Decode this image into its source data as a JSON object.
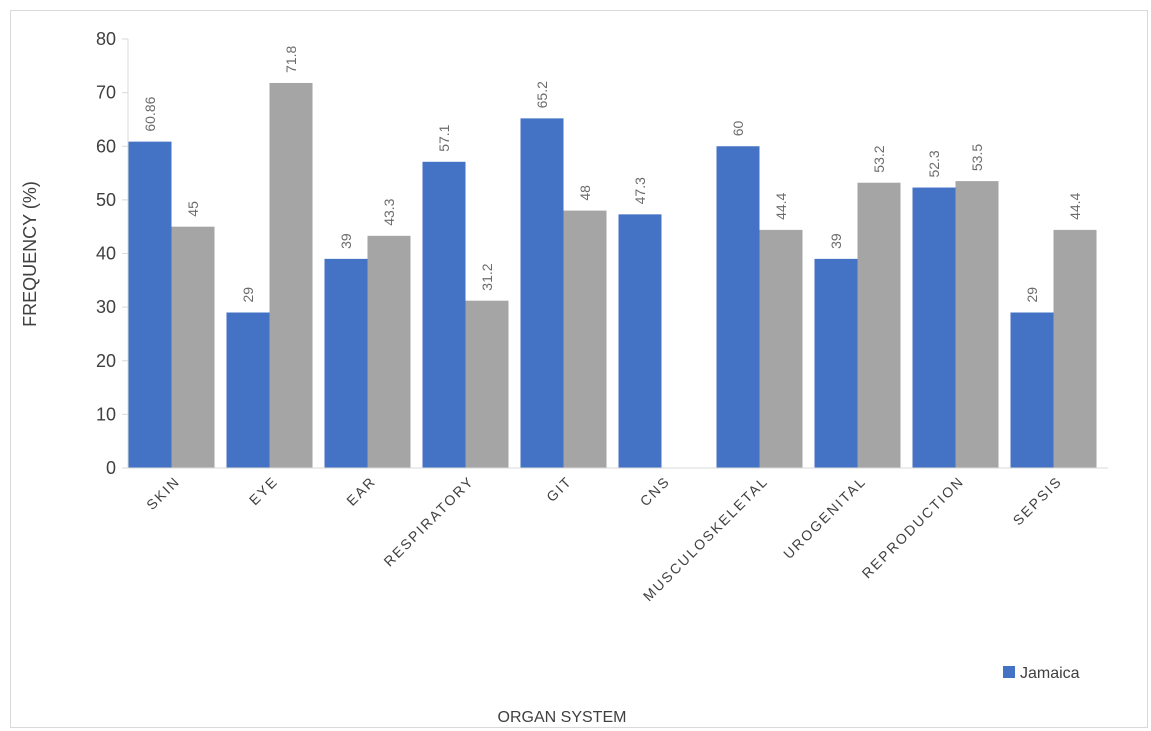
{
  "chart_data": {
    "type": "bar",
    "title": "",
    "xlabel": "ORGAN SYSTEM",
    "ylabel": "FREQUENCY (%)",
    "ylim": [
      0,
      80
    ],
    "yticks": [
      0,
      10,
      20,
      30,
      40,
      50,
      60,
      70,
      80
    ],
    "grid": false,
    "legend_position": "bottom-right",
    "categories": [
      "SKIN",
      "EYE",
      "EAR",
      "RESPIRATORY",
      "GIT",
      "CNS",
      "MUSCULOSKELETAL",
      "UROGENITAL",
      "REPRODUCTION",
      "SEPSIS"
    ],
    "series": [
      {
        "name": "Jamaica",
        "color": "#4472c4",
        "values": [
          60.86,
          29,
          39,
          57.1,
          65.2,
          47.3,
          60,
          39,
          52.3,
          29
        ],
        "labels": [
          "60.86",
          "29",
          "39",
          "57.1",
          "65.2",
          "",
          "60",
          "39",
          "52.3",
          "29"
        ],
        "show_in_legend": true
      },
      {
        "name": "",
        "color": "#a5a5a5",
        "values": [
          45,
          71.8,
          43.3,
          31.2,
          48,
          null,
          44.4,
          53.2,
          53.5,
          44.4
        ],
        "labels": [
          "45",
          "71.8",
          "43.3",
          "31.2",
          "48",
          "47.3",
          "44.4",
          "53.2",
          "53.5",
          "44.4"
        ],
        "show_in_legend": false
      }
    ]
  }
}
